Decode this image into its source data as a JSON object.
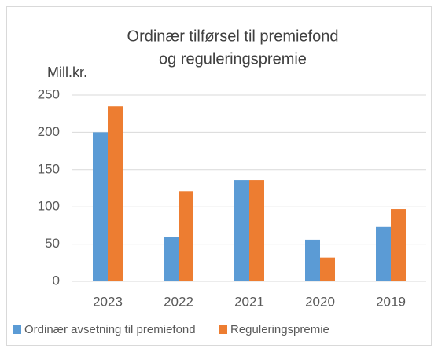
{
  "chart_data": {
    "type": "bar",
    "title": [
      "Ordinær tilførsel til premiefond",
      "og reguleringspremie"
    ],
    "y_label": "Mill.kr.",
    "categories": [
      "2023",
      "2022",
      "2021",
      "2020",
      "2019"
    ],
    "series": [
      {
        "name": "Ordinær avsetning til premiefond",
        "color": "#5b9bd5",
        "values": [
          200,
          60,
          136,
          56,
          73
        ]
      },
      {
        "name": "Reguleringspremie",
        "color": "#ed7d31",
        "values": [
          235,
          121,
          136,
          32,
          97
        ]
      }
    ],
    "ylim": [
      0,
      250
    ],
    "yticks": [
      0,
      50,
      100,
      150,
      200,
      250
    ],
    "grid": true,
    "legend": "bottom"
  }
}
